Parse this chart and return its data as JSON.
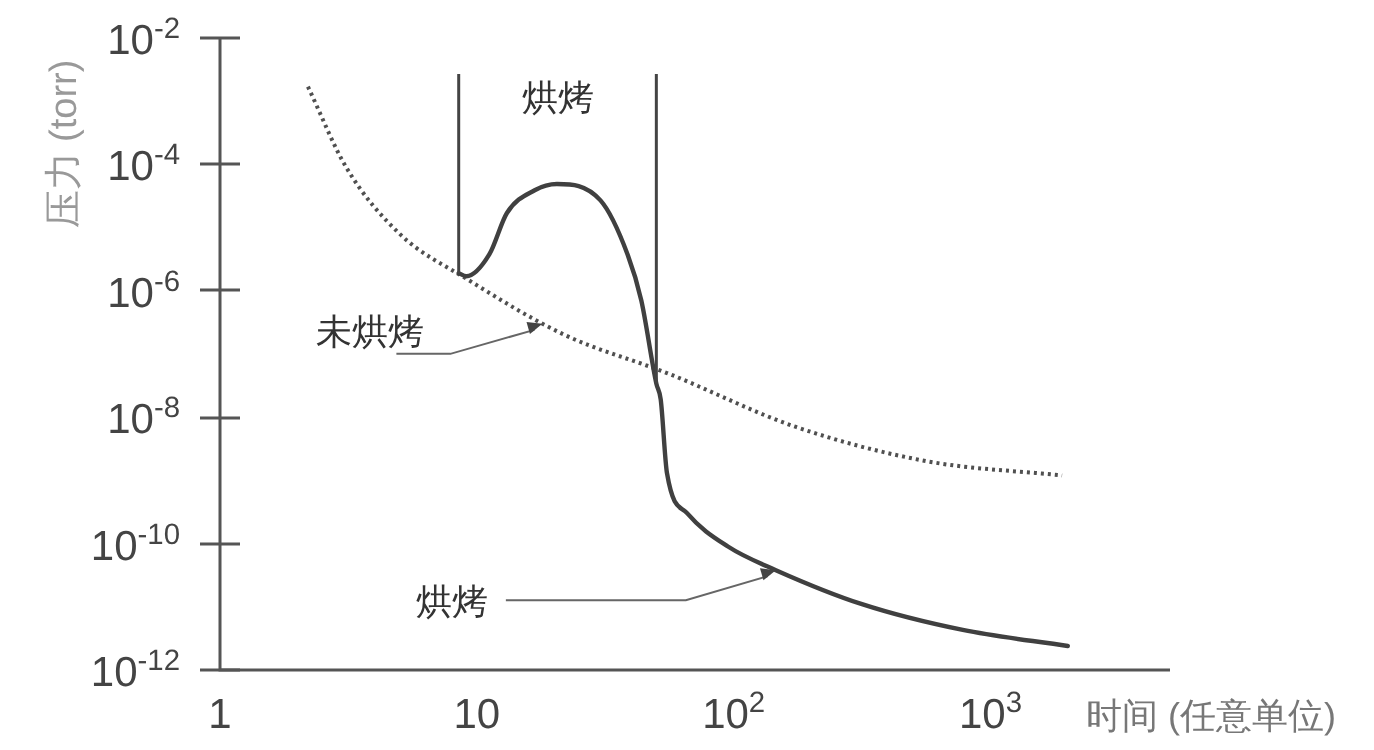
{
  "chart_data": {
    "type": "line",
    "xlabel": "时间 (任意单位)",
    "ylabel": "压力 (torr)",
    "log": "xy",
    "xlim": [
      1,
      5000
    ],
    "ylim": [
      1e-12,
      0.01
    ],
    "xticks": [
      1,
      10,
      {
        "value": 100,
        "label": "10$^{2}$"
      },
      {
        "value": 1000,
        "label": "10$^{3}$"
      }
    ],
    "yticks": [
      {
        "value": 1e-12,
        "label": "10$^{-12}$"
      },
      {
        "value": 1e-10,
        "label": "10$^{-10}$"
      },
      {
        "value": 1e-08,
        "label": "10$^{-8}$"
      },
      {
        "value": 1e-06,
        "label": "10$^{-6}$"
      },
      {
        "value": 0.0001,
        "label": "10$^{-4}$"
      },
      {
        "value": 0.01,
        "label": "10$^{-2}$"
      }
    ],
    "series": [
      {
        "color": "#505050",
        "line_style": "dotted",
        "x": [
          2.2,
          3.1,
          5,
          9,
          22,
          55,
          175,
          570,
          1900
        ],
        "values": [
          0.0017,
          9e-05,
          8e-06,
          1.6e-06,
          2e-07,
          5e-08,
          7e-09,
          2e-09,
          1.2e-09
        ]
      },
      {
        "color": "#404040",
        "line_style": "solid",
        "x": [
          8.5,
          9.1,
          11.2,
          13.1,
          16.8,
          20.5,
          30.3,
          38.6,
          43.7,
          50,
          52,
          55,
          66,
          95,
          146,
          316,
          780,
          2000
        ],
        "values": [
          1.9e-06,
          1.7e-06,
          3.8e-06,
          1.7e-05,
          3.9e-05,
          4.9e-05,
          2.7e-05,
          3.8e-06,
          7e-07,
          3.4e-08,
          1.9e-08,
          1.3e-09,
          3e-10,
          9e-11,
          3.8e-11,
          1.1e-11,
          4.3e-12,
          2.4e-12
        ]
      }
    ],
    "ref_lines": [
      {
        "axis": "x",
        "value": 8.5
      },
      {
        "axis": "x",
        "value": 50
      }
    ],
    "annotations": [
      "烘烤",
      {
        "text": "未烘烤",
        "x": 18,
        "y": 3e-07
      },
      {
        "text": "烘烤",
        "x": 146,
        "y": 3.8e-11
      }
    ],
    "grid": false
  }
}
